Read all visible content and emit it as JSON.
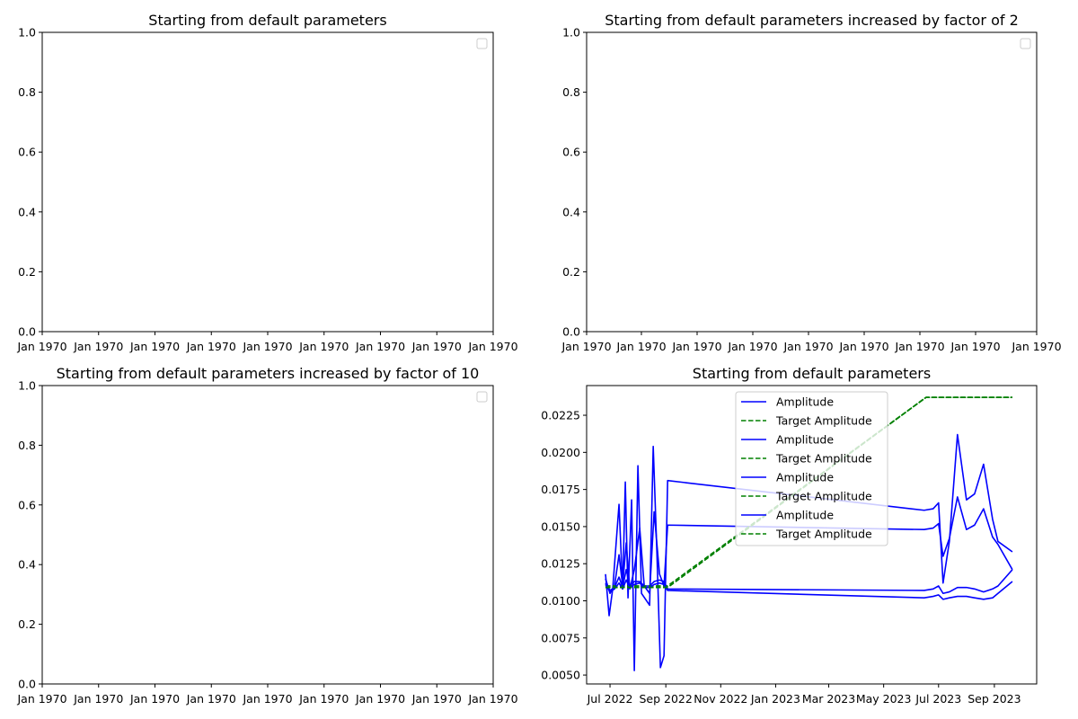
{
  "chart_data": [
    {
      "type": "line",
      "title": "Starting from default parameters",
      "xlabel": "",
      "ylabel": "",
      "ylim": [
        0.0,
        1.0
      ],
      "yticks": [
        0.0,
        0.2,
        0.4,
        0.6,
        0.8,
        1.0
      ],
      "ytick_labels": [
        "0.0",
        "0.2",
        "0.4",
        "0.6",
        "0.8",
        "1.0"
      ],
      "xtick_labels": [
        "Jan 1970",
        "Jan 1970",
        "Jan 1970",
        "Jan 1970",
        "Jan 1970",
        "Jan 1970",
        "Jan 1970",
        "Jan 1970",
        "Jan 1970"
      ],
      "grid": false,
      "legend": {
        "placement": "upper right",
        "entries": []
      },
      "series": []
    },
    {
      "type": "line",
      "title": "Starting from default parameters increased by factor of 2",
      "xlabel": "",
      "ylabel": "",
      "ylim": [
        0.0,
        1.0
      ],
      "yticks": [
        0.0,
        0.2,
        0.4,
        0.6,
        0.8,
        1.0
      ],
      "ytick_labels": [
        "0.0",
        "0.2",
        "0.4",
        "0.6",
        "0.8",
        "1.0"
      ],
      "xtick_labels": [
        "Jan 1970",
        "Jan 1970",
        "Jan 1970",
        "Jan 1970",
        "Jan 1970",
        "Jan 1970",
        "Jan 1970",
        "Jan 1970",
        "Jan 1970"
      ],
      "grid": false,
      "legend": {
        "placement": "upper right",
        "entries": []
      },
      "series": []
    },
    {
      "type": "line",
      "title": "Starting from default parameters increased by factor of 10",
      "xlabel": "",
      "ylabel": "",
      "ylim": [
        0.0,
        1.0
      ],
      "yticks": [
        0.0,
        0.2,
        0.4,
        0.6,
        0.8,
        1.0
      ],
      "ytick_labels": [
        "0.0",
        "0.2",
        "0.4",
        "0.6",
        "0.8",
        "1.0"
      ],
      "xtick_labels": [
        "Jan 1970",
        "Jan 1970",
        "Jan 1970",
        "Jan 1970",
        "Jan 1970",
        "Jan 1970",
        "Jan 1970",
        "Jan 1970",
        "Jan 1970"
      ],
      "grid": false,
      "legend": {
        "placement": "upper right",
        "entries": []
      },
      "series": []
    },
    {
      "type": "line",
      "title": "Starting from default parameters",
      "xlabel": "",
      "ylabel": "",
      "xlim": [
        "2022-06-05",
        "2023-10-18"
      ],
      "ylim": [
        0.0044,
        0.0245
      ],
      "xticks": [
        "2022-07-01",
        "2022-09-01",
        "2022-11-01",
        "2023-01-01",
        "2023-03-01",
        "2023-05-01",
        "2023-07-01",
        "2023-09-01"
      ],
      "xtick_labels": [
        "Jul 2022",
        "Sep 2022",
        "Nov 2022",
        "Jan 2023",
        "Mar 2023",
        "May 2023",
        "Jul 2023",
        "Sep 2023"
      ],
      "yticks": [
        0.005,
        0.0075,
        0.01,
        0.0125,
        0.015,
        0.0175,
        0.02,
        0.0225
      ],
      "ytick_labels": [
        "0.0050",
        "0.0075",
        "0.0100",
        "0.0125",
        "0.0150",
        "0.0175",
        "0.0200",
        "0.0225"
      ],
      "grid": false,
      "legend": {
        "placement": "upper center"
      },
      "series": [
        {
          "name": "Amplitude",
          "color": "#0000ff",
          "dash": "solid",
          "points": [
            [
              "2022-06-26",
              0.0118
            ],
            [
              "2022-06-30",
              0.009
            ],
            [
              "2022-07-04",
              0.0108
            ],
            [
              "2022-07-11",
              0.0165
            ],
            [
              "2022-07-15",
              0.0108
            ],
            [
              "2022-07-18",
              0.018
            ],
            [
              "2022-07-21",
              0.0102
            ],
            [
              "2022-07-25",
              0.0168
            ],
            [
              "2022-07-28",
              0.0053
            ],
            [
              "2022-08-01",
              0.0191
            ],
            [
              "2022-08-05",
              0.0105
            ],
            [
              "2022-08-14",
              0.0097
            ],
            [
              "2022-08-18",
              0.0204
            ],
            [
              "2022-08-22",
              0.0134
            ],
            [
              "2022-08-26",
              0.0055
            ],
            [
              "2022-08-30",
              0.0063
            ],
            [
              "2022-09-03",
              0.0181
            ],
            [
              "2023-06-15",
              0.0161
            ],
            [
              "2023-06-25",
              0.0162
            ],
            [
              "2023-07-01",
              0.0166
            ],
            [
              "2023-07-06",
              0.0112
            ],
            [
              "2023-07-13",
              0.014
            ],
            [
              "2023-07-22",
              0.0212
            ],
            [
              "2023-08-01",
              0.0168
            ],
            [
              "2023-08-10",
              0.0172
            ],
            [
              "2023-08-20",
              0.0192
            ],
            [
              "2023-08-30",
              0.0155
            ],
            [
              "2023-09-05",
              0.014
            ],
            [
              "2023-09-21",
              0.0133
            ]
          ]
        },
        {
          "name": "Target Amplitude",
          "color": "#008000",
          "dash": "dashed",
          "points": [
            [
              "2022-06-26",
              0.011
            ],
            [
              "2022-09-03",
              0.011
            ],
            [
              "2023-06-17",
              0.0237
            ],
            [
              "2023-09-21",
              0.0237
            ]
          ]
        },
        {
          "name": "Amplitude",
          "color": "#0000ff",
          "dash": "solid",
          "points": [
            [
              "2022-06-26",
              0.0115
            ],
            [
              "2022-07-01",
              0.0105
            ],
            [
              "2022-07-06",
              0.011
            ],
            [
              "2022-07-11",
              0.0131
            ],
            [
              "2022-07-15",
              0.011
            ],
            [
              "2022-07-19",
              0.0139
            ],
            [
              "2022-07-23",
              0.0108
            ],
            [
              "2022-07-28",
              0.0121
            ],
            [
              "2022-08-03",
              0.0149
            ],
            [
              "2022-08-08",
              0.011
            ],
            [
              "2022-08-14",
              0.0105
            ],
            [
              "2022-08-19",
              0.016
            ],
            [
              "2022-08-25",
              0.0118
            ],
            [
              "2022-08-30",
              0.011
            ],
            [
              "2022-09-03",
              0.0151
            ],
            [
              "2023-06-15",
              0.0148
            ],
            [
              "2023-06-25",
              0.0149
            ],
            [
              "2023-07-01",
              0.0152
            ],
            [
              "2023-07-06",
              0.013
            ],
            [
              "2023-07-13",
              0.0142
            ],
            [
              "2023-07-22",
              0.017
            ],
            [
              "2023-08-01",
              0.0148
            ],
            [
              "2023-08-10",
              0.0151
            ],
            [
              "2023-08-20",
              0.0162
            ],
            [
              "2023-08-30",
              0.0143
            ],
            [
              "2023-09-05",
              0.0138
            ],
            [
              "2023-09-21",
              0.0121
            ]
          ]
        },
        {
          "name": "Target Amplitude",
          "color": "#008000",
          "dash": "dashed",
          "points": [
            [
              "2022-06-26",
              0.0109
            ],
            [
              "2022-09-03",
              0.0109
            ],
            [
              "2023-06-17",
              0.0237
            ],
            [
              "2023-09-21",
              0.0237
            ]
          ]
        },
        {
          "name": "Amplitude",
          "color": "#0000ff",
          "dash": "solid",
          "points": [
            [
              "2022-06-26",
              0.0112
            ],
            [
              "2022-07-01",
              0.0107
            ],
            [
              "2022-07-06",
              0.0109
            ],
            [
              "2022-07-11",
              0.0116
            ],
            [
              "2022-07-15",
              0.0109
            ],
            [
              "2022-07-19",
              0.0121
            ],
            [
              "2022-07-23",
              0.011
            ],
            [
              "2022-07-28",
              0.0113
            ],
            [
              "2022-08-03",
              0.0113
            ],
            [
              "2022-08-08",
              0.011
            ],
            [
              "2022-08-14",
              0.011
            ],
            [
              "2022-08-19",
              0.0113
            ],
            [
              "2022-08-25",
              0.0114
            ],
            [
              "2022-08-30",
              0.0113
            ],
            [
              "2022-09-03",
              0.0108
            ],
            [
              "2023-06-15",
              0.0107
            ],
            [
              "2023-06-25",
              0.0108
            ],
            [
              "2023-07-01",
              0.011
            ],
            [
              "2023-07-06",
              0.0105
            ],
            [
              "2023-07-13",
              0.0106
            ],
            [
              "2023-07-22",
              0.0109
            ],
            [
              "2023-08-01",
              0.0109
            ],
            [
              "2023-08-10",
              0.0108
            ],
            [
              "2023-08-20",
              0.0106
            ],
            [
              "2023-08-30",
              0.0108
            ],
            [
              "2023-09-05",
              0.011
            ],
            [
              "2023-09-21",
              0.0121
            ]
          ]
        },
        {
          "name": "Target Amplitude",
          "color": "#008000",
          "dash": "dashed",
          "points": [
            [
              "2022-06-26",
              0.011
            ],
            [
              "2022-09-03",
              0.011
            ],
            [
              "2023-06-17",
              0.0237
            ],
            [
              "2023-09-21",
              0.0237
            ]
          ]
        },
        {
          "name": "Amplitude",
          "color": "#0000ff",
          "dash": "solid",
          "points": [
            [
              "2022-06-26",
              0.0111
            ],
            [
              "2022-07-01",
              0.0106
            ],
            [
              "2022-07-06",
              0.0108
            ],
            [
              "2022-07-11",
              0.0112
            ],
            [
              "2022-07-15",
              0.0108
            ],
            [
              "2022-07-19",
              0.0114
            ],
            [
              "2022-07-23",
              0.0109
            ],
            [
              "2022-07-28",
              0.0111
            ],
            [
              "2022-08-03",
              0.0112
            ],
            [
              "2022-08-08",
              0.0109
            ],
            [
              "2022-08-14",
              0.0109
            ],
            [
              "2022-08-19",
              0.0111
            ],
            [
              "2022-08-25",
              0.0112
            ],
            [
              "2022-08-30",
              0.0111
            ],
            [
              "2022-09-03",
              0.0107
            ],
            [
              "2023-06-15",
              0.0102
            ],
            [
              "2023-06-25",
              0.0103
            ],
            [
              "2023-07-01",
              0.0104
            ],
            [
              "2023-07-06",
              0.0101
            ],
            [
              "2023-07-13",
              0.0102
            ],
            [
              "2023-07-22",
              0.0103
            ],
            [
              "2023-08-01",
              0.0103
            ],
            [
              "2023-08-10",
              0.0102
            ],
            [
              "2023-08-20",
              0.0101
            ],
            [
              "2023-08-30",
              0.0102
            ],
            [
              "2023-09-05",
              0.0105
            ],
            [
              "2023-09-21",
              0.0113
            ]
          ]
        },
        {
          "name": "Target Amplitude",
          "color": "#008000",
          "dash": "dashed",
          "points": [
            [
              "2022-06-26",
              0.0109
            ],
            [
              "2022-09-03",
              0.0109
            ],
            [
              "2023-06-17",
              0.0237
            ],
            [
              "2023-09-21",
              0.0237
            ]
          ]
        }
      ]
    }
  ]
}
